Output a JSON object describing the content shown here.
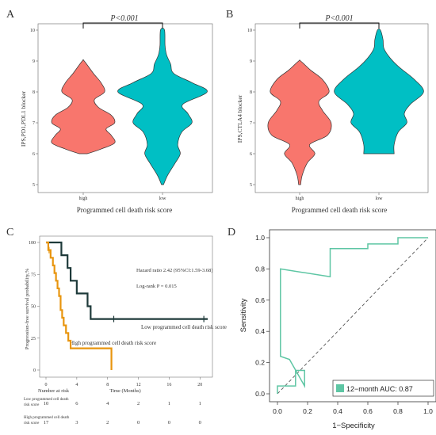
{
  "colors": {
    "high": "#f8766d",
    "low": "#00bfc4",
    "km_high": "#e8950e",
    "km_low": "#1e3a3a",
    "roc": "#5ec6a4"
  },
  "panels": [
    {
      "label": "A"
    },
    {
      "label": "B"
    },
    {
      "label": "C"
    },
    {
      "label": "D"
    }
  ],
  "chart_data": [
    {
      "type": "violin",
      "panel": "A",
      "ylabel": "IPS,PD1,PDL1 blocker",
      "xlabel": "Programmed cell death risk score",
      "categories": [
        "high",
        "low"
      ],
      "yticks": [
        "5",
        "6",
        "7",
        "8",
        "9",
        "10"
      ],
      "ylim": [
        5,
        10
      ],
      "annotation": "P<0.001",
      "series": [
        {
          "category": "high",
          "range": [
            6,
            9
          ],
          "profile": [
            [
              6,
              0.08
            ],
            [
              6.15,
              0.35
            ],
            [
              6.35,
              0.62
            ],
            [
              6.6,
              0.55
            ],
            [
              6.8,
              0.45
            ],
            [
              7.0,
              0.62
            ],
            [
              7.25,
              0.55
            ],
            [
              7.5,
              0.3
            ],
            [
              7.75,
              0.22
            ],
            [
              8.0,
              0.42
            ],
            [
              8.3,
              0.35
            ],
            [
              8.6,
              0.2
            ],
            [
              9,
              0.02
            ]
          ]
        },
        {
          "category": "low",
          "range": [
            5,
            10
          ],
          "profile": [
            [
              5,
              0.02
            ],
            [
              5.3,
              0.1
            ],
            [
              5.7,
              0.25
            ],
            [
              6.0,
              0.35
            ],
            [
              6.3,
              0.3
            ],
            [
              6.7,
              0.38
            ],
            [
              7.0,
              0.58
            ],
            [
              7.3,
              0.5
            ],
            [
              7.6,
              0.4
            ],
            [
              8.0,
              0.88
            ],
            [
              8.3,
              0.58
            ],
            [
              8.6,
              0.22
            ],
            [
              8.9,
              0.16
            ],
            [
              9.2,
              0.08
            ],
            [
              9.5,
              0.05
            ],
            [
              10,
              0.04
            ]
          ]
        }
      ]
    },
    {
      "type": "violin",
      "panel": "B",
      "ylabel": "IPS,CTLA4 blocker",
      "xlabel": "Programmed cell death risk score",
      "categories": [
        "high",
        "low"
      ],
      "yticks": [
        "5",
        "6",
        "7",
        "8",
        "9",
        "10"
      ],
      "ylim": [
        5,
        10
      ],
      "annotation": "P<0.001",
      "series": [
        {
          "category": "high",
          "range": [
            5,
            9
          ],
          "profile": [
            [
              5,
              0.02
            ],
            [
              5.3,
              0.05
            ],
            [
              5.7,
              0.15
            ],
            [
              6.0,
              0.3
            ],
            [
              6.3,
              0.2
            ],
            [
              6.6,
              0.55
            ],
            [
              7.0,
              0.62
            ],
            [
              7.4,
              0.45
            ],
            [
              7.7,
              0.38
            ],
            [
              8.0,
              0.58
            ],
            [
              8.4,
              0.45
            ],
            [
              8.7,
              0.22
            ],
            [
              9,
              0.02
            ]
          ]
        },
        {
          "category": "low",
          "range": [
            6,
            10
          ],
          "profile": [
            [
              6,
              0.3
            ],
            [
              6.3,
              0.3
            ],
            [
              6.7,
              0.38
            ],
            [
              7.0,
              0.55
            ],
            [
              7.3,
              0.5
            ],
            [
              7.6,
              0.62
            ],
            [
              8.0,
              0.88
            ],
            [
              8.4,
              0.7
            ],
            [
              8.8,
              0.4
            ],
            [
              9.1,
              0.22
            ],
            [
              9.4,
              0.1
            ],
            [
              9.7,
              0.08
            ],
            [
              10,
              0.03
            ]
          ]
        }
      ]
    },
    {
      "type": "line",
      "subtype": "kaplan-meier",
      "panel": "C",
      "ylabel": "Progression-free survival probability,%",
      "xlabel": "Time (Months)",
      "xticks": [
        0,
        4,
        8,
        12,
        16,
        20
      ],
      "yticks": [
        0,
        25,
        50,
        75,
        100
      ],
      "xlim": [
        0,
        21
      ],
      "ylim": [
        0,
        100
      ],
      "annotations": [
        "Hazard ratio 2.42 (95%CI:1.59-3.68)",
        "Log-rank P = 0.015"
      ],
      "series": [
        {
          "name": "Low programmed cell death risk score",
          "label_line": "Low programmed cell death risk score",
          "steps": [
            [
              0,
              100
            ],
            [
              2,
              100
            ],
            [
              2,
              90
            ],
            [
              2.8,
              90
            ],
            [
              2.8,
              80
            ],
            [
              3.2,
              80
            ],
            [
              3.2,
              70
            ],
            [
              4,
              70
            ],
            [
              4,
              60
            ],
            [
              5.4,
              60
            ],
            [
              5.4,
              50
            ],
            [
              5.8,
              50
            ],
            [
              5.8,
              40
            ],
            [
              21,
              40
            ]
          ],
          "censor": [
            [
              8.8,
              40
            ],
            [
              20.5,
              40
            ]
          ]
        },
        {
          "name": "High programmed cell death risk score",
          "label_line": "High programmed cell death risk score",
          "steps": [
            [
              0,
              100
            ],
            [
              0.3,
              100
            ],
            [
              0.3,
              94
            ],
            [
              0.6,
              94
            ],
            [
              0.6,
              88
            ],
            [
              0.9,
              88
            ],
            [
              0.9,
              82
            ],
            [
              1.1,
              82
            ],
            [
              1.1,
              76
            ],
            [
              1.3,
              76
            ],
            [
              1.3,
              70
            ],
            [
              1.5,
              70
            ],
            [
              1.5,
              64
            ],
            [
              1.7,
              64
            ],
            [
              1.7,
              58
            ],
            [
              1.9,
              58
            ],
            [
              1.9,
              47
            ],
            [
              2.1,
              47
            ],
            [
              2.1,
              41
            ],
            [
              2.3,
              41
            ],
            [
              2.3,
              35
            ],
            [
              2.6,
              35
            ],
            [
              2.6,
              29
            ],
            [
              2.9,
              29
            ],
            [
              2.9,
              23
            ],
            [
              3.2,
              23
            ],
            [
              3.2,
              17
            ],
            [
              8.5,
              17
            ],
            [
              8.5,
              0
            ]
          ],
          "censor": [
            [
              0.4,
              94
            ]
          ]
        }
      ],
      "risk_table": {
        "title": "Number at risk",
        "rows": [
          {
            "label_lines": [
              "Low programmed cell death",
              "risk score"
            ],
            "counts": [
              "10",
              "6",
              "4",
              "2",
              "1",
              "1"
            ]
          },
          {
            "label_lines": [
              "High programmed cell death",
              "risk score"
            ],
            "counts": [
              "17",
              "3",
              "2",
              "0",
              "0",
              "0"
            ]
          }
        ]
      }
    },
    {
      "type": "line",
      "subtype": "roc",
      "panel": "D",
      "xlabel": "1−Specificity",
      "ylabel": "Sensitivity",
      "xticks": [
        "0.0",
        "0.2",
        "0.4",
        "0.6",
        "0.8",
        "1.0"
      ],
      "yticks": [
        "0.0",
        "0.2",
        "0.4",
        "0.6",
        "0.8",
        "1.0"
      ],
      "xlim": [
        0,
        1
      ],
      "ylim": [
        0,
        1
      ],
      "legend": "12−month AUC: 0.87",
      "legend_position": "bottom-right",
      "series": [
        {
          "name": "12-month",
          "points": [
            [
              0,
              0
            ],
            [
              0,
              0.05
            ],
            [
              0.12,
              0.05
            ],
            [
              0.12,
              0.15
            ],
            [
              0.18,
              0.15
            ],
            [
              0.18,
              0.05
            ],
            [
              0.08,
              0.22
            ],
            [
              0.02,
              0.24
            ],
            [
              0.02,
              0.8
            ],
            [
              0.35,
              0.75
            ],
            [
              0.35,
              0.93
            ],
            [
              0.6,
              0.93
            ],
            [
              0.6,
              0.96
            ],
            [
              0.8,
              0.96
            ],
            [
              0.8,
              1.0
            ],
            [
              1.0,
              1.0
            ]
          ]
        }
      ]
    }
  ]
}
